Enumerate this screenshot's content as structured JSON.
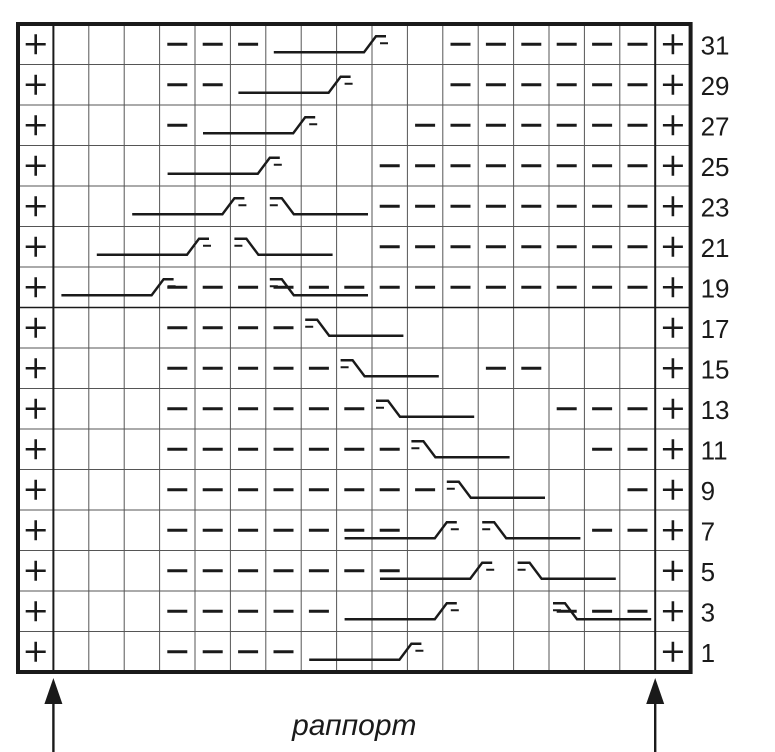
{
  "chart": {
    "columns": 19,
    "rows": 16,
    "row_labels": [
      "31",
      "29",
      "27",
      "25",
      "23",
      "21",
      "19",
      "17",
      "15",
      "13",
      "11",
      "9",
      "7",
      "5",
      "3",
      "1"
    ],
    "caption": "раппорт",
    "colors": {
      "ink": "#1a1a1a",
      "grid": "#555555",
      "background": "#ffffff"
    },
    "symbols": {
      "edge": "+",
      "purl": "–"
    },
    "grid": [
      "+...---.....------+",
      "+...--......------+",
      "+...-......-------+",
      "+.........--------+",
      "+.........--------+",
      "+.........--------+",
      "+...--------------+",
      "+...----..........+",
      "+...-----....--...+",
      "+...------.....---+",
      "+...-------.....--+",
      "+...--------.....-+",
      "+...-------.....--+",
      "+...-------.......+",
      "+...-----......---+",
      "+...----..........+"
    ],
    "cables": [
      {
        "row": 0,
        "dir": "left",
        "pos": 10
      },
      {
        "row": 1,
        "dir": "left",
        "pos": 9
      },
      {
        "row": 2,
        "dir": "left",
        "pos": 8
      },
      {
        "row": 3,
        "dir": "left",
        "pos": 7
      },
      {
        "row": 4,
        "dir": "left",
        "pos": 6
      },
      {
        "row": 4,
        "dir": "right",
        "pos": 7
      },
      {
        "row": 5,
        "dir": "left",
        "pos": 5
      },
      {
        "row": 5,
        "dir": "right",
        "pos": 6
      },
      {
        "row": 6,
        "dir": "left",
        "pos": 4
      },
      {
        "row": 6,
        "dir": "right",
        "pos": 7
      },
      {
        "row": 7,
        "dir": "right",
        "pos": 8
      },
      {
        "row": 8,
        "dir": "right",
        "pos": 9
      },
      {
        "row": 9,
        "dir": "right",
        "pos": 10
      },
      {
        "row": 10,
        "dir": "right",
        "pos": 11
      },
      {
        "row": 11,
        "dir": "right",
        "pos": 12
      },
      {
        "row": 12,
        "dir": "left",
        "pos": 12
      },
      {
        "row": 12,
        "dir": "right",
        "pos": 13
      },
      {
        "row": 13,
        "dir": "left",
        "pos": 13
      },
      {
        "row": 13,
        "dir": "right",
        "pos": 14
      },
      {
        "row": 14,
        "dir": "left",
        "pos": 12
      },
      {
        "row": 14,
        "dir": "right",
        "pos": 15
      },
      {
        "row": 15,
        "dir": "left",
        "pos": 11
      }
    ]
  }
}
